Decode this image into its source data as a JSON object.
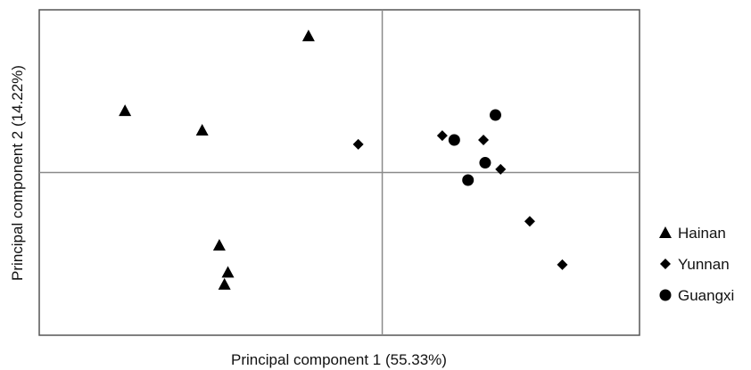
{
  "chart_data": {
    "type": "scatter",
    "xlabel": "Principal component 1 (55.33%)",
    "ylabel": "Principal component 2 (14.22%)",
    "xlim": [
      -2.0,
      1.5
    ],
    "ylim": [
      -1.5,
      1.5
    ],
    "grid": false,
    "reference_lines": {
      "x": 0,
      "y": 0
    },
    "legend_position": "right",
    "series": [
      {
        "name": "Hainan",
        "marker": "triangle",
        "color": "#000000",
        "points": [
          {
            "x": -0.43,
            "y": 1.26
          },
          {
            "x": -1.5,
            "y": 0.57
          },
          {
            "x": -1.05,
            "y": 0.39
          },
          {
            "x": -0.95,
            "y": -0.67
          },
          {
            "x": -0.9,
            "y": -0.92
          },
          {
            "x": -0.92,
            "y": -1.03
          }
        ]
      },
      {
        "name": "Yunnan",
        "marker": "diamond",
        "color": "#000000",
        "points": [
          {
            "x": -0.14,
            "y": 0.26
          },
          {
            "x": 0.35,
            "y": 0.34
          },
          {
            "x": 0.59,
            "y": 0.3
          },
          {
            "x": 0.69,
            "y": 0.03
          },
          {
            "x": 0.86,
            "y": -0.45
          },
          {
            "x": 1.05,
            "y": -0.85
          }
        ]
      },
      {
        "name": "Guangxi",
        "marker": "circle",
        "color": "#000000",
        "points": [
          {
            "x": 0.66,
            "y": 0.53
          },
          {
            "x": 0.42,
            "y": 0.3
          },
          {
            "x": 0.6,
            "y": 0.09
          },
          {
            "x": 0.5,
            "y": -0.07
          }
        ]
      }
    ]
  }
}
